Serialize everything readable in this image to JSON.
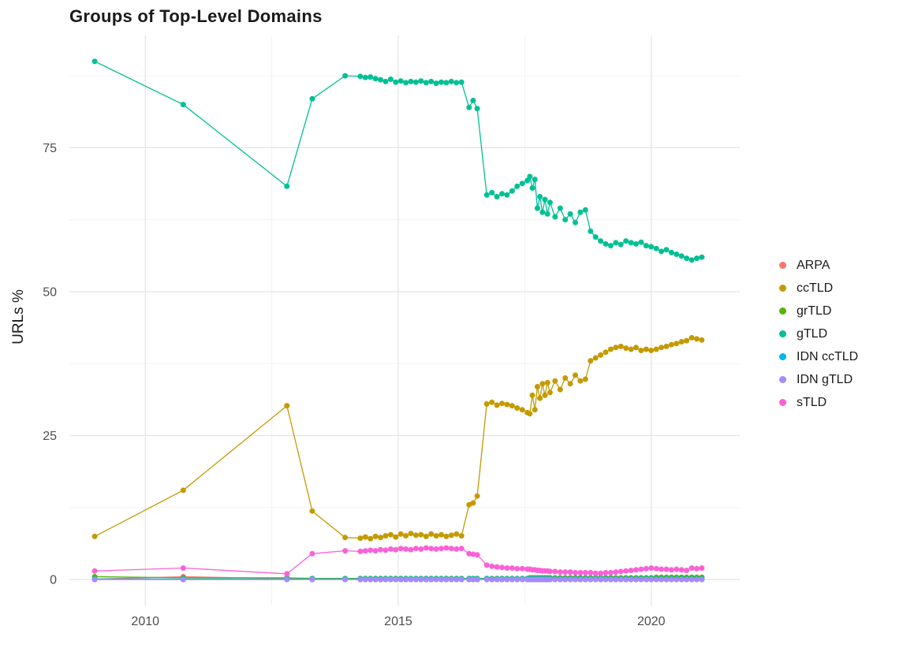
{
  "chart_data": {
    "type": "line",
    "title": "Groups of Top-Level Domains",
    "xlabel": "",
    "ylabel": "URLs %",
    "xlim": [
      2008.5,
      2021.75
    ],
    "ylim": [
      -4.5,
      94.5
    ],
    "xticks": [
      2010,
      2015,
      2020
    ],
    "xtick_labels": [
      "2010",
      "2015",
      "2020"
    ],
    "yticks": [
      0,
      25,
      50,
      75
    ],
    "ytick_labels": [
      "0",
      "25",
      "50",
      "75"
    ],
    "minor_xticks": [
      2012.5,
      2017.5
    ],
    "minor_yticks": [
      12.5,
      37.5,
      62.5,
      87.5
    ],
    "grid": true,
    "legend_position": "right",
    "colors": {
      "major_grid": "#e4e4e4",
      "minor_grid": "#f2f2f2",
      "tick_label": "#4d4d4d",
      "background": "#ffffff"
    },
    "x": [
      2009.0,
      2010.75,
      2012.8,
      2013.3,
      2013.95,
      2014.25,
      2014.35,
      2014.45,
      2014.55,
      2014.65,
      2014.75,
      2014.85,
      2014.95,
      2015.05,
      2015.15,
      2015.25,
      2015.35,
      2015.45,
      2015.55,
      2015.65,
      2015.75,
      2015.85,
      2015.95,
      2016.05,
      2016.15,
      2016.25,
      2016.4,
      2016.48,
      2016.56,
      2016.75,
      2016.85,
      2016.95,
      2017.05,
      2017.15,
      2017.25,
      2017.35,
      2017.45,
      2017.55,
      2017.6,
      2017.65,
      2017.7,
      2017.75,
      2017.8,
      2017.85,
      2017.9,
      2017.95,
      2018.0,
      2018.1,
      2018.2,
      2018.3,
      2018.4,
      2018.5,
      2018.6,
      2018.7,
      2018.8,
      2018.9,
      2019.0,
      2019.1,
      2019.2,
      2019.3,
      2019.4,
      2019.5,
      2019.6,
      2019.7,
      2019.8,
      2019.9,
      2020.0,
      2020.1,
      2020.2,
      2020.3,
      2020.4,
      2020.5,
      2020.6,
      2020.7,
      2020.8,
      2020.9,
      2021.0
    ],
    "series": [
      {
        "name": "ARPA",
        "color": "#F8766D",
        "values": [
          0.1,
          0.5,
          0.15,
          0.1,
          0.05,
          0.05,
          0.05,
          0.05,
          0.05,
          0.05,
          0.05,
          0.05,
          0.05,
          0.05,
          0.05,
          0.05,
          0.05,
          0.05,
          0.05,
          0.05,
          0.05,
          0.05,
          0.05,
          0.05,
          0.05,
          0.05,
          0.05,
          0.05,
          0.05,
          0.05,
          0.05,
          0.05,
          0.05,
          0.05,
          0.05,
          0.05,
          0.05,
          0.05,
          0.05,
          0.05,
          0.05,
          0.05,
          0.05,
          0.05,
          0.05,
          0.05,
          0.05,
          0.05,
          0.05,
          0.05,
          0.05,
          0.05,
          0.05,
          0.05,
          0.05,
          0.05,
          0.05,
          0.05,
          0.05,
          0.05,
          0.05,
          0.05,
          0.05,
          0.05,
          0.05,
          0.05,
          0.05,
          0.05,
          0.05,
          0.05,
          0.05,
          0.05,
          0.05,
          0.05,
          0.05,
          0.05,
          0.05
        ]
      },
      {
        "name": "ccTLD",
        "color": "#C49A00",
        "values": [
          7.5,
          15.5,
          30.2,
          11.9,
          7.3,
          7.2,
          7.4,
          7.1,
          7.5,
          7.3,
          7.6,
          7.8,
          7.4,
          7.9,
          7.6,
          8.0,
          7.7,
          7.8,
          7.5,
          7.9,
          7.6,
          7.8,
          7.5,
          7.7,
          7.9,
          7.6,
          13.0,
          13.3,
          14.5,
          30.5,
          30.8,
          30.3,
          30.6,
          30.4,
          30.2,
          29.8,
          29.5,
          29.0,
          28.8,
          32.0,
          29.5,
          33.5,
          31.5,
          34.0,
          32.0,
          34.2,
          32.5,
          34.5,
          33.0,
          35.0,
          34.0,
          35.5,
          34.5,
          34.8,
          38.0,
          38.5,
          39.0,
          39.5,
          40.0,
          40.3,
          40.5,
          40.2,
          40.0,
          40.3,
          39.8,
          40.0,
          39.8,
          40.0,
          40.3,
          40.5,
          40.8,
          41.0,
          41.3,
          41.5,
          42.0,
          41.8,
          41.6
        ]
      },
      {
        "name": "grTLD",
        "color": "#53B400",
        "values": [
          0.5,
          0.3,
          0.3,
          0.2,
          0.2,
          0.2,
          0.2,
          0.2,
          0.2,
          0.2,
          0.2,
          0.2,
          0.2,
          0.2,
          0.2,
          0.2,
          0.2,
          0.2,
          0.2,
          0.2,
          0.2,
          0.2,
          0.2,
          0.2,
          0.2,
          0.2,
          0.2,
          0.2,
          0.2,
          0.2,
          0.2,
          0.2,
          0.2,
          0.2,
          0.2,
          0.2,
          0.2,
          0.2,
          0.3,
          0.3,
          0.3,
          0.3,
          0.3,
          0.3,
          0.3,
          0.3,
          0.3,
          0.3,
          0.3,
          0.3,
          0.3,
          0.3,
          0.3,
          0.3,
          0.3,
          0.3,
          0.3,
          0.3,
          0.3,
          0.3,
          0.3,
          0.3,
          0.3,
          0.3,
          0.3,
          0.3,
          0.3,
          0.4,
          0.4,
          0.4,
          0.4,
          0.4,
          0.4,
          0.4,
          0.4,
          0.4,
          0.4
        ]
      },
      {
        "name": "gTLD",
        "color": "#00C094",
        "values": [
          90.0,
          82.5,
          68.3,
          83.5,
          87.5,
          87.4,
          87.2,
          87.3,
          87.0,
          86.8,
          86.5,
          86.9,
          86.4,
          86.6,
          86.3,
          86.5,
          86.4,
          86.6,
          86.3,
          86.5,
          86.2,
          86.4,
          86.3,
          86.5,
          86.3,
          86.4,
          82.0,
          83.2,
          81.8,
          66.8,
          67.2,
          66.5,
          67.0,
          66.8,
          67.5,
          68.3,
          68.8,
          69.3,
          70.0,
          68.0,
          69.5,
          64.5,
          66.5,
          63.8,
          66.0,
          63.5,
          65.5,
          63.0,
          64.5,
          62.5,
          63.5,
          62.0,
          63.8,
          64.2,
          60.5,
          59.5,
          58.8,
          58.3,
          58.0,
          58.5,
          58.2,
          58.8,
          58.5,
          58.3,
          58.6,
          58.0,
          57.8,
          57.5,
          57.0,
          57.3,
          56.8,
          56.5,
          56.2,
          55.8,
          55.5,
          55.8,
          56.0
        ]
      },
      {
        "name": "IDN ccTLD",
        "color": "#00B6EB",
        "values": [
          0.1,
          0.1,
          0.1,
          0.1,
          0.1,
          0.1,
          0.1,
          0.1,
          0.1,
          0.1,
          0.1,
          0.1,
          0.1,
          0.1,
          0.1,
          0.1,
          0.1,
          0.1,
          0.1,
          0.1,
          0.1,
          0.1,
          0.1,
          0.1,
          0.1,
          0.1,
          0.1,
          0.1,
          0.1,
          0.1,
          0.1,
          0.1,
          0.1,
          0.1,
          0.1,
          0.1,
          0.1,
          0.1,
          0.1,
          0.1,
          0.1,
          0.1,
          0.1,
          0.1,
          0.1,
          0.1,
          0.1,
          0.1,
          0.1,
          0.1,
          0.1,
          0.1,
          0.1,
          0.1,
          0.1,
          0.1,
          0.1,
          0.1,
          0.1,
          0.1,
          0.1,
          0.1,
          0.1,
          0.1,
          0.1,
          0.1,
          0.1,
          0.1,
          0.1,
          0.1,
          0.1,
          0.1,
          0.1,
          0.1,
          0.1,
          0.1,
          0.1
        ]
      },
      {
        "name": "IDN gTLD",
        "color": "#A58AFF",
        "values": [
          0,
          0,
          0,
          0,
          0,
          0,
          0,
          0,
          0,
          0,
          0,
          0,
          0,
          0,
          0,
          0,
          0,
          0,
          0,
          0,
          0,
          0,
          0,
          0,
          0,
          0,
          0,
          0,
          0,
          0,
          0,
          0,
          0,
          0,
          0,
          0,
          0,
          0,
          0,
          0,
          0,
          0,
          0,
          0,
          0,
          0,
          0,
          0,
          0,
          0,
          0,
          0,
          0,
          0,
          0,
          0,
          0,
          0,
          0,
          0,
          0,
          0,
          0,
          0,
          0,
          0,
          0,
          0,
          0,
          0,
          0,
          0,
          0,
          0,
          0,
          0,
          0
        ]
      },
      {
        "name": "sTLD",
        "color": "#FB61D7",
        "values": [
          1.5,
          2.0,
          1.0,
          4.5,
          5.0,
          4.9,
          5.0,
          5.1,
          5.0,
          5.2,
          5.1,
          5.3,
          5.2,
          5.4,
          5.3,
          5.2,
          5.4,
          5.3,
          5.5,
          5.4,
          5.3,
          5.4,
          5.5,
          5.4,
          5.3,
          5.4,
          4.5,
          4.4,
          4.3,
          2.5,
          2.3,
          2.2,
          2.1,
          2.0,
          2.0,
          1.9,
          1.9,
          1.8,
          1.8,
          1.7,
          1.7,
          1.6,
          1.6,
          1.5,
          1.5,
          1.5,
          1.4,
          1.4,
          1.3,
          1.3,
          1.3,
          1.2,
          1.2,
          1.2,
          1.2,
          1.1,
          1.1,
          1.2,
          1.2,
          1.3,
          1.4,
          1.5,
          1.6,
          1.7,
          1.8,
          1.9,
          2.0,
          1.9,
          1.8,
          1.8,
          1.7,
          1.8,
          1.7,
          1.6,
          2.0,
          1.9,
          2.0
        ]
      }
    ]
  }
}
